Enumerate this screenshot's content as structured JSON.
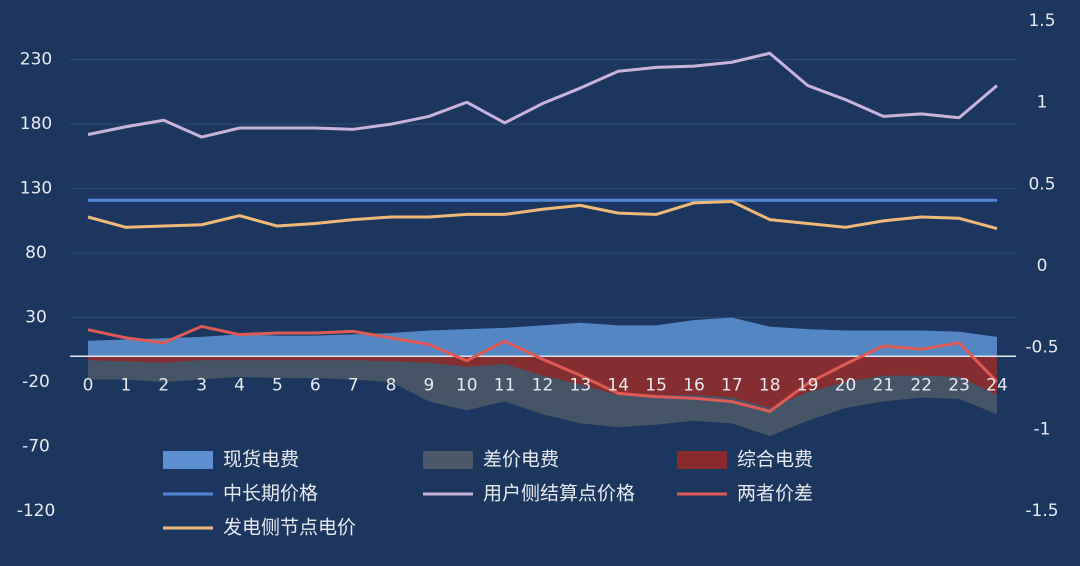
{
  "chart_data": {
    "type": "combo",
    "categories": [
      "0",
      "1",
      "2",
      "3",
      "4",
      "5",
      "6",
      "7",
      "8",
      "9",
      "10",
      "11",
      "12",
      "13",
      "14",
      "15",
      "16",
      "17",
      "18",
      "19",
      "20",
      "21",
      "22",
      "23",
      "24"
    ],
    "ylim": [
      -120,
      260
    ],
    "yticks": [
      -120,
      -70,
      -20,
      30,
      80,
      130,
      180,
      230
    ],
    "y2lim": [
      -1.5,
      1.5
    ],
    "y2ticks": [
      -1.5,
      -1,
      -0.5,
      0,
      0.5,
      1,
      1.5
    ],
    "grid": true,
    "series": [
      {
        "name": "现货电费",
        "type": "area",
        "color": "#5b8fcf",
        "values": [
          12,
          13,
          14,
          15,
          17,
          16,
          16,
          17,
          18,
          20,
          21,
          22,
          24,
          26,
          24,
          24,
          28,
          30,
          23,
          21,
          20,
          20,
          20,
          19,
          15
        ]
      },
      {
        "name": "差价电费",
        "type": "area",
        "color": "#4b5868",
        "values": [
          -18,
          -18,
          -20,
          -18,
          -16,
          -17,
          -17,
          -18,
          -20,
          -35,
          -42,
          -35,
          -45,
          -52,
          -55,
          -53,
          -50,
          -52,
          -62,
          -50,
          -40,
          -35,
          -32,
          -33,
          -45
        ]
      },
      {
        "name": "综合电费",
        "type": "area",
        "color": "#8b2a2a",
        "values": [
          -3,
          -4,
          -5,
          -3,
          -3,
          -3,
          -3,
          -3,
          -4,
          -5,
          -8,
          -6,
          -15,
          -22,
          -30,
          -30,
          -30,
          -32,
          -40,
          -28,
          -20,
          -15,
          -15,
          -16,
          -30
        ]
      },
      {
        "name": "中长期价格",
        "type": "line",
        "color": "#4f86d6",
        "values": [
          121,
          121,
          121,
          121,
          121,
          121,
          121,
          121,
          121,
          121,
          121,
          121,
          121,
          121,
          121,
          121,
          121,
          121,
          121,
          121,
          121,
          121,
          121,
          121,
          121
        ]
      },
      {
        "name": "用户侧结算点价格",
        "type": "line",
        "color": "#c9b3dc",
        "values": [
          172,
          178,
          183,
          170,
          177,
          177,
          177,
          176,
          180,
          186,
          197,
          181,
          196,
          208,
          221,
          224,
          225,
          228,
          235,
          210,
          199,
          186,
          188,
          185,
          210
        ]
      },
      {
        "name": "两者价差",
        "type": "line",
        "axis": "y2",
        "color": "#e05a55",
        "values": [
          -0.39,
          -0.44,
          -0.47,
          -0.37,
          -0.42,
          -0.41,
          -0.41,
          -0.4,
          -0.44,
          -0.48,
          -0.58,
          -0.46,
          -0.57,
          -0.67,
          -0.78,
          -0.8,
          -0.81,
          -0.83,
          -0.89,
          -0.72,
          -0.6,
          -0.49,
          -0.51,
          -0.47,
          -0.71
        ]
      },
      {
        "name": "发电侧节点电价",
        "type": "line",
        "color": "#f0b978",
        "values": [
          108,
          100,
          101,
          102,
          109,
          101,
          103,
          106,
          108,
          108,
          110,
          110,
          114,
          117,
          111,
          110,
          119,
          120,
          106,
          103,
          100,
          105,
          108,
          107,
          99
        ]
      }
    ]
  }
}
